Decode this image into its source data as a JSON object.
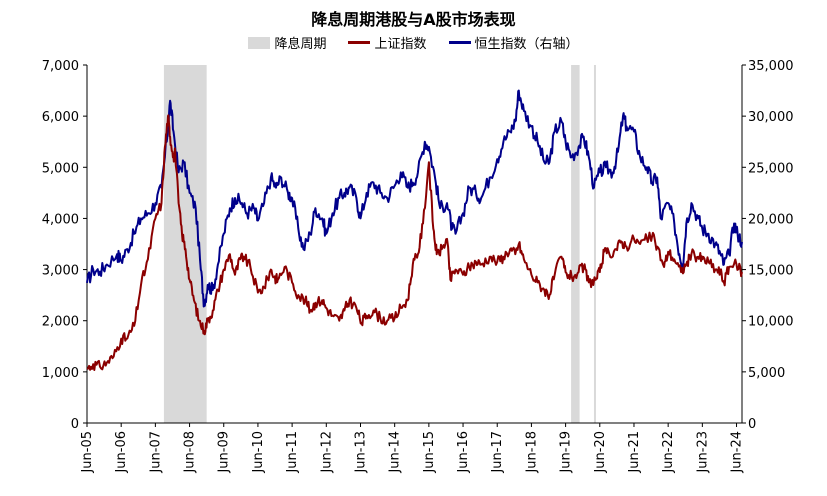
{
  "chart_data": {
    "type": "line",
    "title": "降息周期港股与A股市场表现",
    "legend": {
      "shade_label": "降息周期",
      "series1_label": "上证指数",
      "series2_label": "恒生指数（右轴）"
    },
    "colors": {
      "series1": "#8b0000",
      "series2": "#00008b",
      "shade": "#d9d9d9"
    },
    "x_categories": [
      "Jun-05",
      "Jun-06",
      "Jun-07",
      "Jun-08",
      "Jun-09",
      "Jun-10",
      "Jun-11",
      "Jun-12",
      "Jun-13",
      "Jun-14",
      "Jun-15",
      "Jun-16",
      "Jun-17",
      "Jun-18",
      "Jun-19",
      "Jun-20",
      "Jun-21",
      "Jun-22",
      "Jun-23",
      "Jun-24"
    ],
    "x_range": [
      2005.42,
      2024.58
    ],
    "y_left": {
      "min": 0,
      "max": 7000,
      "step": 1000,
      "tick_labels": [
        "0",
        "1,000",
        "2,000",
        "3,000",
        "4,000",
        "5,000",
        "6,000",
        "7,000"
      ]
    },
    "y_right": {
      "min": 0,
      "max": 35000,
      "step": 5000,
      "tick_labels": [
        "0",
        "5,000",
        "10,000",
        "15,000",
        "20,000",
        "25,000",
        "30,000",
        "35,000"
      ]
    },
    "shaded_periods": [
      [
        2007.67,
        2008.92
      ],
      [
        2019.58,
        2019.83
      ],
      [
        2020.25,
        2020.3
      ]
    ],
    "series": [
      {
        "name": "上证指数",
        "axis": "left",
        "points": [
          [
            2005.42,
            1060
          ],
          [
            2005.6,
            1150
          ],
          [
            2005.8,
            1100
          ],
          [
            2006.0,
            1180
          ],
          [
            2006.2,
            1300
          ],
          [
            2006.42,
            1650
          ],
          [
            2006.6,
            1650
          ],
          [
            2006.8,
            1900
          ],
          [
            2007.0,
            2700
          ],
          [
            2007.2,
            3200
          ],
          [
            2007.42,
            4000
          ],
          [
            2007.6,
            4300
          ],
          [
            2007.7,
            5400
          ],
          [
            2007.79,
            6000
          ],
          [
            2007.85,
            5600
          ],
          [
            2007.95,
            5200
          ],
          [
            2008.0,
            5300
          ],
          [
            2008.1,
            4300
          ],
          [
            2008.2,
            3700
          ],
          [
            2008.3,
            3400
          ],
          [
            2008.42,
            2800
          ],
          [
            2008.55,
            2400
          ],
          [
            2008.7,
            2000
          ],
          [
            2008.85,
            1800
          ],
          [
            2008.95,
            2000
          ],
          [
            2009.1,
            2200
          ],
          [
            2009.25,
            2600
          ],
          [
            2009.42,
            3000
          ],
          [
            2009.6,
            3300
          ],
          [
            2009.75,
            2900
          ],
          [
            2009.9,
            3200
          ],
          [
            2010.0,
            3250
          ],
          [
            2010.2,
            3050
          ],
          [
            2010.42,
            2550
          ],
          [
            2010.6,
            2650
          ],
          [
            2010.8,
            3000
          ],
          [
            2010.9,
            2850
          ],
          [
            2011.0,
            2800
          ],
          [
            2011.2,
            3050
          ],
          [
            2011.42,
            2750
          ],
          [
            2011.6,
            2500
          ],
          [
            2011.8,
            2400
          ],
          [
            2011.95,
            2200
          ],
          [
            2012.1,
            2350
          ],
          [
            2012.3,
            2400
          ],
          [
            2012.42,
            2250
          ],
          [
            2012.6,
            2100
          ],
          [
            2012.8,
            2000
          ],
          [
            2012.95,
            2200
          ],
          [
            2013.1,
            2400
          ],
          [
            2013.3,
            2250
          ],
          [
            2013.45,
            1950
          ],
          [
            2013.6,
            2100
          ],
          [
            2013.8,
            2200
          ],
          [
            2014.0,
            2050
          ],
          [
            2014.2,
            2000
          ],
          [
            2014.42,
            2050
          ],
          [
            2014.6,
            2250
          ],
          [
            2014.8,
            2400
          ],
          [
            2014.95,
            3100
          ],
          [
            2015.1,
            3300
          ],
          [
            2015.25,
            3900
          ],
          [
            2015.42,
            5100
          ],
          [
            2015.55,
            3800
          ],
          [
            2015.65,
            3300
          ],
          [
            2015.8,
            3400
          ],
          [
            2015.95,
            3600
          ],
          [
            2016.05,
            2800
          ],
          [
            2016.2,
            3000
          ],
          [
            2016.42,
            2900
          ],
          [
            2016.6,
            3050
          ],
          [
            2016.8,
            3150
          ],
          [
            2016.95,
            3100
          ],
          [
            2017.2,
            3250
          ],
          [
            2017.42,
            3150
          ],
          [
            2017.6,
            3250
          ],
          [
            2017.8,
            3400
          ],
          [
            2017.95,
            3300
          ],
          [
            2018.05,
            3500
          ],
          [
            2018.2,
            3200
          ],
          [
            2018.42,
            2900
          ],
          [
            2018.6,
            2750
          ],
          [
            2018.8,
            2600
          ],
          [
            2018.95,
            2500
          ],
          [
            2019.1,
            2900
          ],
          [
            2019.3,
            3250
          ],
          [
            2019.42,
            2950
          ],
          [
            2019.6,
            2850
          ],
          [
            2019.8,
            2950
          ],
          [
            2019.95,
            3050
          ],
          [
            2020.1,
            2750
          ],
          [
            2020.3,
            2800
          ],
          [
            2020.42,
            2950
          ],
          [
            2020.55,
            3350
          ],
          [
            2020.7,
            3300
          ],
          [
            2020.9,
            3400
          ],
          [
            2021.05,
            3550
          ],
          [
            2021.2,
            3450
          ],
          [
            2021.42,
            3600
          ],
          [
            2021.6,
            3500
          ],
          [
            2021.8,
            3600
          ],
          [
            2021.95,
            3650
          ],
          [
            2022.1,
            3450
          ],
          [
            2022.3,
            3050
          ],
          [
            2022.42,
            3350
          ],
          [
            2022.6,
            3200
          ],
          [
            2022.8,
            2950
          ],
          [
            2022.95,
            3100
          ],
          [
            2023.1,
            3300
          ],
          [
            2023.3,
            3250
          ],
          [
            2023.42,
            3200
          ],
          [
            2023.6,
            3150
          ],
          [
            2023.8,
            3000
          ],
          [
            2023.95,
            2950
          ],
          [
            2024.05,
            2750
          ],
          [
            2024.2,
            3050
          ],
          [
            2024.42,
            3100
          ],
          [
            2024.58,
            2950
          ]
        ]
      },
      {
        "name": "恒生指数",
        "axis": "right",
        "points": [
          [
            2005.42,
            13700
          ],
          [
            2005.6,
            15000
          ],
          [
            2005.8,
            14800
          ],
          [
            2006.0,
            15500
          ],
          [
            2006.3,
            16500
          ],
          [
            2006.42,
            15900
          ],
          [
            2006.6,
            17000
          ],
          [
            2006.8,
            18500
          ],
          [
            2007.0,
            20000
          ],
          [
            2007.2,
            20500
          ],
          [
            2007.42,
            21500
          ],
          [
            2007.6,
            23000
          ],
          [
            2007.75,
            27500
          ],
          [
            2007.85,
            31500
          ],
          [
            2007.95,
            28500
          ],
          [
            2008.1,
            24500
          ],
          [
            2008.25,
            25500
          ],
          [
            2008.42,
            22500
          ],
          [
            2008.6,
            21000
          ],
          [
            2008.75,
            15000
          ],
          [
            2008.85,
            11500
          ],
          [
            2008.95,
            13500
          ],
          [
            2009.1,
            13000
          ],
          [
            2009.25,
            15500
          ],
          [
            2009.42,
            18500
          ],
          [
            2009.6,
            21000
          ],
          [
            2009.75,
            22000
          ],
          [
            2009.95,
            21500
          ],
          [
            2010.1,
            20500
          ],
          [
            2010.3,
            21000
          ],
          [
            2010.42,
            19800
          ],
          [
            2010.6,
            21500
          ],
          [
            2010.8,
            24000
          ],
          [
            2010.95,
            23000
          ],
          [
            2011.1,
            24000
          ],
          [
            2011.3,
            22500
          ],
          [
            2011.42,
            22000
          ],
          [
            2011.6,
            19000
          ],
          [
            2011.75,
            17000
          ],
          [
            2011.95,
            18500
          ],
          [
            2012.1,
            21000
          ],
          [
            2012.3,
            20000
          ],
          [
            2012.42,
            18500
          ],
          [
            2012.6,
            20500
          ],
          [
            2012.8,
            22000
          ],
          [
            2012.95,
            22500
          ],
          [
            2013.1,
            23000
          ],
          [
            2013.3,
            22000
          ],
          [
            2013.42,
            20000
          ],
          [
            2013.6,
            22500
          ],
          [
            2013.8,
            23500
          ],
          [
            2014.0,
            22500
          ],
          [
            2014.2,
            22000
          ],
          [
            2014.42,
            23200
          ],
          [
            2014.6,
            24500
          ],
          [
            2014.8,
            23000
          ],
          [
            2014.95,
            23500
          ],
          [
            2015.1,
            24500
          ],
          [
            2015.3,
            27500
          ],
          [
            2015.42,
            27000
          ],
          [
            2015.6,
            24000
          ],
          [
            2015.75,
            21000
          ],
          [
            2015.95,
            21500
          ],
          [
            2016.1,
            19000
          ],
          [
            2016.2,
            18500
          ],
          [
            2016.42,
            20500
          ],
          [
            2016.6,
            23000
          ],
          [
            2016.8,
            22500
          ],
          [
            2016.95,
            22000
          ],
          [
            2017.2,
            24000
          ],
          [
            2017.42,
            25800
          ],
          [
            2017.6,
            27500
          ],
          [
            2017.8,
            28500
          ],
          [
            2017.95,
            29500
          ],
          [
            2018.05,
            32500
          ],
          [
            2018.2,
            30500
          ],
          [
            2018.42,
            29000
          ],
          [
            2018.6,
            27500
          ],
          [
            2018.8,
            25500
          ],
          [
            2018.95,
            25500
          ],
          [
            2019.1,
            28500
          ],
          [
            2019.3,
            29500
          ],
          [
            2019.42,
            27500
          ],
          [
            2019.6,
            26000
          ],
          [
            2019.8,
            27000
          ],
          [
            2019.95,
            28000
          ],
          [
            2020.1,
            26000
          ],
          [
            2020.25,
            23000
          ],
          [
            2020.42,
            24500
          ],
          [
            2020.6,
            25000
          ],
          [
            2020.8,
            24500
          ],
          [
            2020.95,
            26500
          ],
          [
            2021.1,
            30000
          ],
          [
            2021.2,
            29000
          ],
          [
            2021.42,
            28500
          ],
          [
            2021.6,
            26000
          ],
          [
            2021.8,
            25000
          ],
          [
            2021.95,
            23500
          ],
          [
            2022.1,
            24000
          ],
          [
            2022.2,
            20000
          ],
          [
            2022.42,
            21500
          ],
          [
            2022.6,
            19500
          ],
          [
            2022.75,
            16500
          ],
          [
            2022.85,
            15500
          ],
          [
            2022.95,
            19500
          ],
          [
            2023.1,
            21500
          ],
          [
            2023.3,
            20000
          ],
          [
            2023.42,
            19000
          ],
          [
            2023.6,
            18500
          ],
          [
            2023.8,
            17500
          ],
          [
            2023.95,
            16500
          ],
          [
            2024.05,
            15500
          ],
          [
            2024.2,
            16500
          ],
          [
            2024.35,
            19500
          ],
          [
            2024.45,
            18500
          ],
          [
            2024.58,
            17700
          ]
        ]
      }
    ]
  }
}
